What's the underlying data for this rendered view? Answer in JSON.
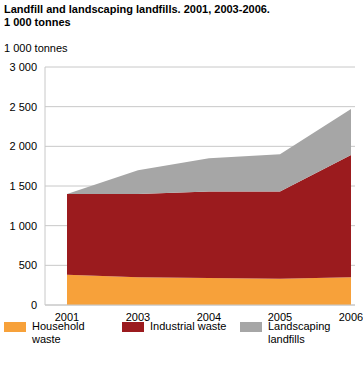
{
  "chart_data": {
    "type": "area",
    "title": "Landfill and landscaping landfills. 2001, 2003-2006.",
    "subtitle": "1 000 tonnes",
    "y_label": "1 000 tonnes",
    "categories": [
      "2001",
      "2003",
      "2004",
      "2005",
      "2006"
    ],
    "series": [
      {
        "name": "Household waste",
        "color": "#f7a13a",
        "values": [
          380,
          350,
          340,
          330,
          350
        ]
      },
      {
        "name": "Industrial waste",
        "color": "#9b1b1e",
        "values": [
          1020,
          1050,
          1090,
          1100,
          1540
        ]
      },
      {
        "name": "Landscaping landfills",
        "color": "#a6a6a6",
        "values": [
          0,
          300,
          420,
          470,
          580
        ]
      }
    ],
    "ylim": [
      0,
      3000
    ],
    "yticks": [
      0,
      500,
      {
        "value": 1000,
        "label": "1 000"
      },
      {
        "value": 1500,
        "label": "1 500"
      },
      {
        "value": 2000,
        "label": "2 000"
      },
      {
        "value": 2500,
        "label": "2 500"
      },
      {
        "value": 3000,
        "label": "3 000"
      }
    ],
    "stacked": true,
    "grid": true,
    "legend": "bottom"
  }
}
